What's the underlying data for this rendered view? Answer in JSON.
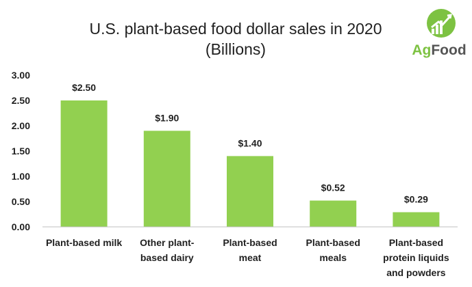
{
  "chart_data": {
    "type": "bar",
    "title": "U.S. plant-based food dollar sales in 2020",
    "subtitle": "(Billions)",
    "categories": [
      [
        "Plant-based milk"
      ],
      [
        "Other plant-",
        "based dairy"
      ],
      [
        "Plant-based",
        "meat"
      ],
      [
        "Plant-based",
        "meals"
      ],
      [
        "Plant-based",
        "protein liquids",
        "and powders"
      ]
    ],
    "values": [
      2.5,
      1.9,
      1.4,
      0.52,
      0.29
    ],
    "data_labels": [
      "$2.50",
      "$1.90",
      "$1.40",
      "$0.52",
      "$0.29"
    ],
    "y_ticks": [
      "0.00",
      "0.50",
      "1.00",
      "1.50",
      "2.00",
      "2.50",
      "3.00"
    ],
    "ylim": [
      0,
      3
    ],
    "xlabel": "",
    "ylabel": "",
    "grid": false,
    "legend": "none",
    "bar_color": "#92d050"
  },
  "logo": {
    "brand_prefix": "Ag",
    "brand_suffix": "Food",
    "prefix_color": "#7dc242",
    "suffix_color": "#555555",
    "icon_name": "growth-chart-leaf-icon"
  }
}
